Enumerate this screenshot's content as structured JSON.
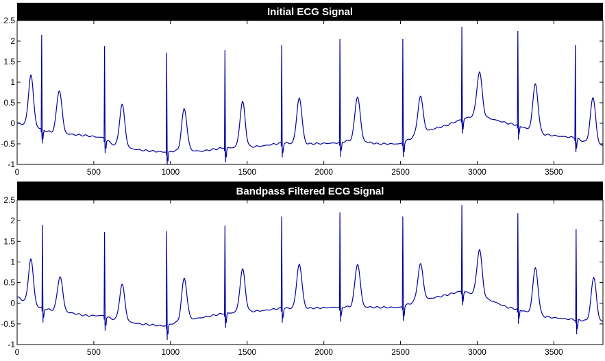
{
  "colors": {
    "background": "#ffffff",
    "title_bar": "#000000",
    "title_text": "#ffffff",
    "trace": "#0000a0",
    "axis": "#000000"
  },
  "chart_data": [
    {
      "type": "line",
      "title": "Initial ECG Signal",
      "xlabel": "",
      "ylabel": "",
      "xlim": [
        0,
        3820
      ],
      "ylim": [
        -1,
        2.5
      ],
      "xticks": [
        "0",
        "500",
        "1000",
        "1500",
        "2000",
        "2500",
        "3000",
        "3500"
      ],
      "yticks": [
        "-1",
        "-0.5",
        "0",
        "0.5",
        "1",
        "1.5",
        "2",
        "2.5"
      ],
      "grid": false,
      "baseline": [
        [
          0,
          0
        ],
        [
          100,
          -0.05
        ],
        [
          200,
          -0.2
        ],
        [
          300,
          -0.25
        ],
        [
          450,
          -0.3
        ],
        [
          560,
          -0.35
        ],
        [
          640,
          -0.55
        ],
        [
          800,
          -0.65
        ],
        [
          960,
          -0.7
        ],
        [
          1100,
          -0.65
        ],
        [
          1200,
          -0.68
        ],
        [
          1340,
          -0.6
        ],
        [
          1500,
          -0.58
        ],
        [
          1600,
          -0.55
        ],
        [
          1720,
          -0.48
        ],
        [
          1900,
          -0.5
        ],
        [
          2080,
          -0.48
        ],
        [
          2200,
          -0.4
        ],
        [
          2350,
          -0.5
        ],
        [
          2500,
          -0.5
        ],
        [
          2600,
          -0.3
        ],
        [
          2700,
          -0.15
        ],
        [
          2800,
          -0.05
        ],
        [
          2900,
          0.1
        ],
        [
          3000,
          0.2
        ],
        [
          3100,
          0.1
        ],
        [
          3200,
          0.0
        ],
        [
          3270,
          -0.05
        ],
        [
          3400,
          -0.25
        ],
        [
          3500,
          -0.3
        ],
        [
          3640,
          -0.35
        ],
        [
          3700,
          -0.45
        ],
        [
          3820,
          -0.55
        ]
      ],
      "beats": [
        {
          "x": 160,
          "peak": 2.15,
          "t_peak": 0.8
        },
        {
          "x": 570,
          "peak": 1.88,
          "t_peak": 0.45
        },
        {
          "x": 975,
          "peak": 1.72,
          "t_peak": 0.35
        },
        {
          "x": 1355,
          "peak": 1.78,
          "t_peak": 0.52
        },
        {
          "x": 1725,
          "peak": 1.9,
          "t_peak": 0.62
        },
        {
          "x": 2105,
          "peak": 2.05,
          "t_peak": 0.65
        },
        {
          "x": 2515,
          "peak": 2.05,
          "t_peak": 0.65
        },
        {
          "x": 2900,
          "peak": 2.35,
          "t_peak": 1.25
        },
        {
          "x": 3265,
          "peak": 2.25,
          "t_peak": 0.95
        },
        {
          "x": 3640,
          "peak": 1.9,
          "t_peak": 0.62
        }
      ],
      "first_wave": {
        "x": 90,
        "peak": 1.18
      }
    },
    {
      "type": "line",
      "title": "Bandpass Filtered ECG Signal",
      "xlabel": "",
      "ylabel": "",
      "xlim": [
        0,
        3820
      ],
      "ylim": [
        -1,
        2.5
      ],
      "xticks": [
        "0",
        "500",
        "1000",
        "1500",
        "2000",
        "2500",
        "3000",
        "3500"
      ],
      "yticks": [
        "-1",
        "-0.5",
        "0",
        "0.5",
        "1",
        "1.5",
        "2",
        "2.5"
      ],
      "grid": false,
      "baseline": [
        [
          0,
          0.15
        ],
        [
          100,
          -0.05
        ],
        [
          200,
          -0.15
        ],
        [
          300,
          -0.2
        ],
        [
          450,
          -0.3
        ],
        [
          560,
          -0.3
        ],
        [
          640,
          -0.4
        ],
        [
          800,
          -0.5
        ],
        [
          960,
          -0.55
        ],
        [
          1100,
          -0.4
        ],
        [
          1200,
          -0.35
        ],
        [
          1340,
          -0.25
        ],
        [
          1500,
          -0.2
        ],
        [
          1600,
          -0.18
        ],
        [
          1720,
          -0.12
        ],
        [
          1900,
          -0.12
        ],
        [
          2080,
          -0.1
        ],
        [
          2200,
          -0.08
        ],
        [
          2350,
          -0.1
        ],
        [
          2500,
          -0.1
        ],
        [
          2600,
          0.05
        ],
        [
          2700,
          0.12
        ],
        [
          2800,
          0.2
        ],
        [
          2900,
          0.3
        ],
        [
          3000,
          0.2
        ],
        [
          3100,
          0.05
        ],
        [
          3200,
          -0.1
        ],
        [
          3270,
          -0.15
        ],
        [
          3400,
          -0.3
        ],
        [
          3500,
          -0.35
        ],
        [
          3640,
          -0.4
        ],
        [
          3700,
          -0.42
        ],
        [
          3820,
          -0.45
        ]
      ],
      "beats": [
        {
          "x": 165,
          "peak": 1.9,
          "t_peak": 0.65
        },
        {
          "x": 570,
          "peak": 1.72,
          "t_peak": 0.45
        },
        {
          "x": 975,
          "peak": 1.75,
          "t_peak": 0.6
        },
        {
          "x": 1355,
          "peak": 1.88,
          "t_peak": 0.82
        },
        {
          "x": 1725,
          "peak": 2.1,
          "t_peak": 0.95
        },
        {
          "x": 2105,
          "peak": 2.2,
          "t_peak": 0.95
        },
        {
          "x": 2515,
          "peak": 2.1,
          "t_peak": 0.95
        },
        {
          "x": 2900,
          "peak": 2.38,
          "t_peak": 1.3
        },
        {
          "x": 3265,
          "peak": 2.18,
          "t_peak": 0.85
        },
        {
          "x": 3645,
          "peak": 1.8,
          "t_peak": 0.62
        }
      ],
      "first_wave": {
        "x": 90,
        "peak": 1.08
      }
    }
  ]
}
